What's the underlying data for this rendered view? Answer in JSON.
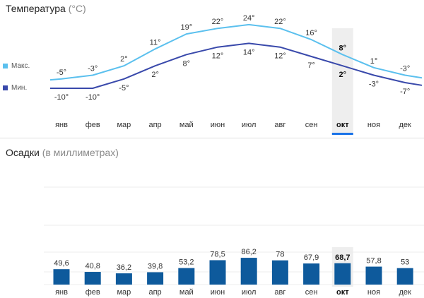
{
  "temperature": {
    "title": "Температура",
    "unit": "(°C)",
    "legend": {
      "max": "Макс.",
      "min": "Мин."
    }
  },
  "precipitation": {
    "title": "Осадки",
    "unit": "(в миллиметрах)"
  },
  "colors": {
    "max_line": "#5bc0ee",
    "min_line": "#3949ab",
    "bar": "#0e5a9c",
    "highlight": "#eeeeee",
    "selected_tab": "#1a73e8"
  },
  "selected_month_index": 9,
  "chart_data": [
    {
      "type": "line",
      "categories": [
        "янв",
        "фев",
        "мар",
        "апр",
        "май",
        "июн",
        "июл",
        "авг",
        "сен",
        "окт",
        "ноя",
        "дек"
      ],
      "series": [
        {
          "name": "Макс.",
          "values": [
            -5,
            -3,
            2,
            11,
            19,
            22,
            24,
            22,
            16,
            8,
            1,
            -3
          ]
        },
        {
          "name": "Мин.",
          "values": [
            -10,
            -10,
            -5,
            2,
            8,
            12,
            14,
            12,
            7,
            2,
            -3,
            -7
          ]
        }
      ],
      "value_labels": {
        "max": [
          "-5°",
          "-3°",
          "2°",
          "11°",
          "19°",
          "22°",
          "24°",
          "22°",
          "16°",
          "8°",
          "1°",
          "-3°"
        ],
        "min": [
          "-10°",
          "-10°",
          "-5°",
          "2°",
          "8°",
          "12°",
          "14°",
          "12°",
          "7°",
          "2°",
          "-3°",
          "-7°"
        ]
      },
      "title": "Температура (°C)",
      "legend": "left",
      "grid": false
    },
    {
      "type": "bar",
      "categories": [
        "янв",
        "фев",
        "мар",
        "апр",
        "май",
        "июн",
        "июл",
        "авг",
        "сен",
        "окт",
        "ноя",
        "дек"
      ],
      "values": [
        49.6,
        40.8,
        36.2,
        39.8,
        53.2,
        78.5,
        86.2,
        78,
        67.9,
        68.7,
        57.8,
        53
      ],
      "value_labels": [
        "49,6",
        "40,8",
        "36,2",
        "39,8",
        "53,2",
        "78,5",
        "86,2",
        "78",
        "67,9",
        "68,7",
        "57,8",
        "53"
      ],
      "title": "Осадки (в миллиметрах)",
      "grid": true
    }
  ]
}
